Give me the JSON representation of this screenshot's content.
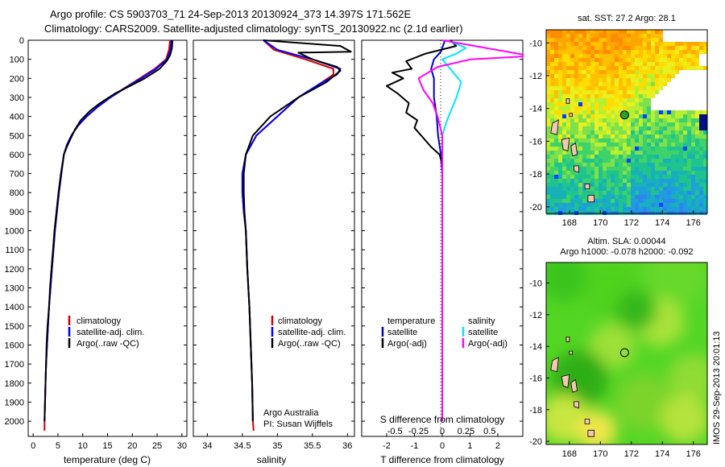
{
  "header": {
    "line1": "Argo profile: CS 5903703_71 24-Sep-2013 20130924_373 14.397S 171.562E",
    "line2": "Climatology: CARS2009. Satellite-adjusted climatology: synTS_20130922.nc (2.1d earlier)"
  },
  "footer": {
    "side_label": "IMOS 29-Sep-2013 20:01:13"
  },
  "colors": {
    "climatology": "#d00000",
    "satellite_adjusted": "#0000ff",
    "argo": "#000000",
    "s_satellite": "#00e5ff",
    "s_argo": "#ff00ff"
  },
  "panels": {
    "temperature": {
      "xlabel": "temperature (deg C)",
      "legend": [
        "climatology",
        "satellite-adj. clim.",
        "Argo(..raw -QC)"
      ]
    },
    "salinity": {
      "xlabel": "salinity",
      "legend": [
        "climatology",
        "satellite-adj. clim.",
        "Argo(..raw -QC)"
      ],
      "credit_org": "Argo Australia",
      "credit_pi": "PI: Susan Wijffels"
    },
    "difference": {
      "xlabel": "T difference from climatology",
      "s_label": "S difference from climatology",
      "legend_t": [
        "temperature",
        "satellite",
        "Argo(-adj)"
      ],
      "legend_s": [
        "salinity",
        "satellite",
        "Argo(-adj)"
      ]
    }
  },
  "maps": {
    "sst": {
      "title": "sat. SST: 27.2  Argo: 28.1",
      "lon_ticks": [
        "168",
        "170",
        "172",
        "174",
        "176"
      ],
      "lat_ticks": [
        "-10",
        "-12",
        "-14",
        "-16",
        "-18",
        "-20"
      ]
    },
    "sla": {
      "title_line1": "Altim. SLA: 0.00044",
      "title_line2": "Argo h1000: -0.078 h2000: -0.092",
      "lon_ticks": [
        "168",
        "170",
        "172",
        "174",
        "176"
      ],
      "lat_ticks": [
        "-10",
        "-12",
        "-14",
        "-16",
        "-18",
        "-20"
      ]
    }
  },
  "chart_data": [
    {
      "type": "line",
      "name": "temperature-profile",
      "xlabel": "temperature (deg C)",
      "ylabel": "",
      "xlim": [
        -1,
        31
      ],
      "ylim": [
        2080,
        0
      ],
      "x_ticks": [
        0,
        5,
        10,
        15,
        20,
        25,
        30
      ],
      "y_ticks": [
        0,
        100,
        200,
        300,
        400,
        500,
        600,
        700,
        800,
        900,
        1000,
        1100,
        1200,
        1300,
        1400,
        1500,
        1600,
        1700,
        1800,
        1900,
        2000
      ],
      "series": [
        {
          "name": "climatology",
          "color": "#d00000",
          "points": [
            [
              27.6,
              0
            ],
            [
              27.4,
              50
            ],
            [
              26.8,
              100
            ],
            [
              24.5,
              150
            ],
            [
              21.5,
              200
            ],
            [
              18.5,
              250
            ],
            [
              15.5,
              300
            ],
            [
              13,
              350
            ],
            [
              10.8,
              400
            ],
            [
              9,
              450
            ],
            [
              7.7,
              500
            ],
            [
              6.8,
              550
            ],
            [
              6.2,
              600
            ],
            [
              5.7,
              700
            ],
            [
              5.2,
              800
            ],
            [
              4.8,
              900
            ],
            [
              4.4,
              1000
            ],
            [
              4.1,
              1100
            ],
            [
              3.8,
              1200
            ],
            [
              3.5,
              1300
            ],
            [
              3.2,
              1400
            ],
            [
              3,
              1500
            ],
            [
              2.8,
              1600
            ],
            [
              2.6,
              1700
            ],
            [
              2.5,
              1800
            ],
            [
              2.4,
              1900
            ],
            [
              2.3,
              2000
            ],
            [
              2.3,
              2050
            ]
          ]
        },
        {
          "name": "satellite-adj. clim.",
          "color": "#0000ff",
          "points": [
            [
              27.9,
              0
            ],
            [
              27.7,
              50
            ],
            [
              27,
              100
            ],
            [
              24.8,
              150
            ],
            [
              21.8,
              200
            ],
            [
              18.6,
              250
            ],
            [
              15.6,
              300
            ],
            [
              13,
              350
            ],
            [
              10.8,
              400
            ],
            [
              9,
              450
            ],
            [
              7.7,
              500
            ],
            [
              6.8,
              550
            ],
            [
              6.2,
              600
            ],
            [
              5.7,
              700
            ],
            [
              5.2,
              800
            ],
            [
              4.8,
              900
            ],
            [
              4.4,
              1000
            ],
            [
              4.1,
              1100
            ],
            [
              3.8,
              1200
            ],
            [
              3.5,
              1300
            ],
            [
              3.2,
              1400
            ],
            [
              3,
              1500
            ],
            [
              2.8,
              1600
            ],
            [
              2.6,
              1700
            ],
            [
              2.5,
              1800
            ],
            [
              2.4,
              1900
            ],
            [
              2.3,
              2000
            ]
          ]
        },
        {
          "name": "Argo(..raw -QC)",
          "color": "#000000",
          "points": [
            [
              28.1,
              0
            ],
            [
              28,
              40
            ],
            [
              27.6,
              80
            ],
            [
              26.9,
              110
            ],
            [
              25.5,
              150
            ],
            [
              22.5,
              200
            ],
            [
              19.5,
              240
            ],
            [
              16.5,
              280
            ],
            [
              13.5,
              330
            ],
            [
              11.5,
              370
            ],
            [
              9.6,
              420
            ],
            [
              8.4,
              470
            ],
            [
              7.5,
              520
            ],
            [
              6.8,
              560
            ],
            [
              6.2,
              600
            ],
            [
              5.6,
              700
            ],
            [
              5.1,
              800
            ],
            [
              4.7,
              900
            ],
            [
              4.3,
              1000
            ],
            [
              4,
              1100
            ],
            [
              3.7,
              1200
            ],
            [
              3.4,
              1300
            ],
            [
              3.2,
              1400
            ],
            [
              2.9,
              1500
            ],
            [
              2.7,
              1600
            ],
            [
              2.6,
              1700
            ],
            [
              2.5,
              1800
            ],
            [
              2.4,
              1900
            ],
            [
              2.3,
              2000
            ]
          ]
        }
      ]
    },
    {
      "type": "line",
      "name": "salinity-profile",
      "xlabel": "salinity",
      "ylabel": "",
      "xlim": [
        33.8,
        36.1
      ],
      "ylim": [
        2080,
        0
      ],
      "x_ticks": [
        34,
        34.5,
        35,
        35.5,
        36
      ],
      "series": [
        {
          "name": "climatology",
          "color": "#d00000",
          "points": [
            [
              34.8,
              0
            ],
            [
              34.95,
              50
            ],
            [
              35.4,
              100
            ],
            [
              35.8,
              150
            ],
            [
              35.8,
              180
            ],
            [
              35.6,
              230
            ],
            [
              35.3,
              300
            ],
            [
              35,
              400
            ],
            [
              34.7,
              500
            ],
            [
              34.55,
              600
            ],
            [
              34.5,
              700
            ],
            [
              34.5,
              800
            ],
            [
              34.52,
              900
            ],
            [
              34.55,
              1000
            ],
            [
              34.57,
              1200
            ],
            [
              34.6,
              1400
            ],
            [
              34.62,
              1600
            ],
            [
              34.64,
              1800
            ],
            [
              34.65,
              2000
            ],
            [
              34.66,
              2050
            ]
          ]
        },
        {
          "name": "satellite-adj. clim.",
          "color": "#0000ff",
          "points": [
            [
              34.8,
              0
            ],
            [
              35,
              50
            ],
            [
              35.5,
              100
            ],
            [
              35.9,
              150
            ],
            [
              35.85,
              180
            ],
            [
              35.6,
              230
            ],
            [
              35.3,
              300
            ],
            [
              35,
              400
            ],
            [
              34.7,
              500
            ],
            [
              34.55,
              600
            ],
            [
              34.5,
              700
            ],
            [
              34.5,
              800
            ],
            [
              34.52,
              900
            ],
            [
              34.55,
              1000
            ],
            [
              34.57,
              1200
            ],
            [
              34.6,
              1400
            ],
            [
              34.62,
              1600
            ],
            [
              34.64,
              1800
            ],
            [
              34.65,
              2000
            ]
          ]
        },
        {
          "name": "Argo(..raw -QC)",
          "color": "#000000",
          "points": [
            [
              34.8,
              0
            ],
            [
              35.9,
              30
            ],
            [
              36.05,
              60
            ],
            [
              35.3,
              65
            ],
            [
              35.5,
              100
            ],
            [
              35.85,
              140
            ],
            [
              35.9,
              160
            ],
            [
              35.7,
              220
            ],
            [
              35.3,
              300
            ],
            [
              34.9,
              400
            ],
            [
              34.65,
              500
            ],
            [
              34.55,
              600
            ],
            [
              34.52,
              700
            ],
            [
              34.52,
              800
            ],
            [
              34.53,
              900
            ],
            [
              34.55,
              1000
            ],
            [
              34.57,
              1200
            ],
            [
              34.6,
              1400
            ],
            [
              34.62,
              1600
            ],
            [
              34.64,
              1800
            ],
            [
              34.65,
              2000
            ]
          ]
        }
      ]
    },
    {
      "type": "line",
      "name": "difference-profile",
      "xlabel": "T difference from climatology",
      "s_label": "S difference from climatology",
      "t_xlim": [
        -2.9,
        2.9
      ],
      "t_ticks": [
        -2,
        -1,
        0,
        1,
        2
      ],
      "s_xlim": [
        -0.85,
        0.85
      ],
      "s_ticks": [
        -0.5,
        -0.25,
        0,
        0.25,
        0.5
      ],
      "series": [
        {
          "name": "temperature satellite",
          "axis": "T",
          "color": "#0000cc",
          "points": [
            [
              0.1,
              0
            ],
            [
              -0.05,
              60
            ],
            [
              -0.3,
              100
            ],
            [
              -0.4,
              150
            ],
            [
              -0.3,
              200
            ],
            [
              -0.3,
              300
            ],
            [
              -0.2,
              400
            ],
            [
              -0.15,
              500
            ],
            [
              -0.05,
              600
            ],
            [
              0,
              700
            ],
            [
              0,
              2000
            ]
          ]
        },
        {
          "name": "temperature Argo(-adj)",
          "axis": "T",
          "color": "#000000",
          "points": [
            [
              0.3,
              0
            ],
            [
              0.5,
              30
            ],
            [
              -0.6,
              70
            ],
            [
              -1.3,
              110
            ],
            [
              -1.1,
              150
            ],
            [
              -1.8,
              170
            ],
            [
              -1.4,
              200
            ],
            [
              -2,
              240
            ],
            [
              -1.6,
              280
            ],
            [
              -1.2,
              330
            ],
            [
              -1.3,
              380
            ],
            [
              -0.9,
              420
            ],
            [
              -1,
              460
            ],
            [
              -0.7,
              510
            ],
            [
              -0.4,
              560
            ],
            [
              -0.1,
              600
            ],
            [
              0,
              650
            ],
            [
              0,
              2000
            ]
          ]
        },
        {
          "name": "salinity satellite",
          "axis": "S",
          "color": "#00e5ff",
          "points": [
            [
              0.05,
              0
            ],
            [
              0.25,
              40
            ],
            [
              0.15,
              70
            ],
            [
              0,
              100
            ],
            [
              0.1,
              160
            ],
            [
              0.2,
              220
            ],
            [
              0.15,
              300
            ],
            [
              0.1,
              360
            ],
            [
              0.05,
              420
            ],
            [
              0,
              500
            ],
            [
              0,
              2000
            ]
          ]
        },
        {
          "name": "salinity Argo(-adj)",
          "axis": "S",
          "color": "#ff00ff",
          "points": [
            [
              0,
              0
            ],
            [
              0.85,
              75
            ],
            [
              0.85,
              85
            ],
            [
              0.3,
              100
            ],
            [
              -0.05,
              140
            ],
            [
              -0.25,
              200
            ],
            [
              -0.2,
              260
            ],
            [
              -0.1,
              330
            ],
            [
              -0.05,
              400
            ],
            [
              0,
              500
            ],
            [
              0,
              2000
            ]
          ]
        }
      ]
    }
  ]
}
